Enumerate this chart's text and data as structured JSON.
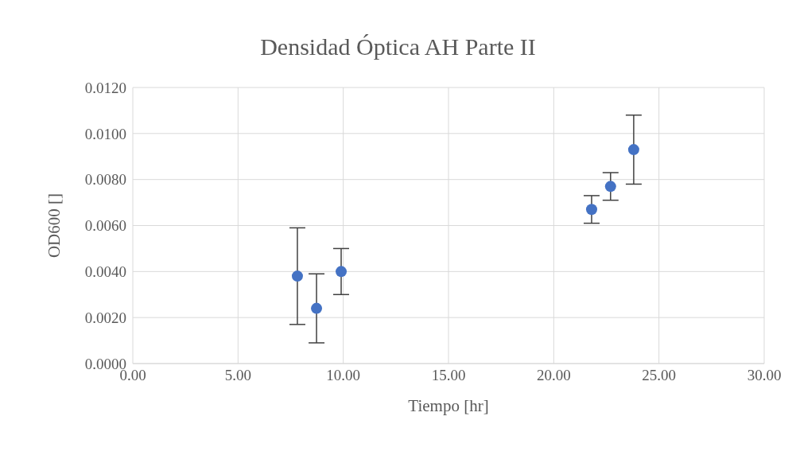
{
  "chart_data": {
    "type": "scatter",
    "title": "Densidad Óptica AH Parte II",
    "xlabel": "Tiempo [hr]",
    "ylabel": "OD600 []",
    "x": [
      7.82,
      8.73,
      9.9,
      21.8,
      22.7,
      23.8
    ],
    "series": [
      {
        "color": "#4472c4",
        "values": [
          0.0038,
          0.0024,
          0.004,
          0.0067,
          0.0077,
          0.0093
        ],
        "errors": [
          0.0021,
          0.0015,
          0.001,
          0.0006,
          0.0006,
          0.0015
        ]
      }
    ],
    "xlim": [
      0,
      30
    ],
    "xticks": [
      {
        "value": 0,
        "label": "0.00"
      },
      {
        "value": 5,
        "label": "5.00"
      },
      {
        "value": 10,
        "label": "10.00"
      },
      {
        "value": 15,
        "label": "15.00"
      },
      {
        "value": 20,
        "label": "20.00"
      },
      {
        "value": 25,
        "label": "25.00"
      },
      {
        "value": 30,
        "label": "30.00"
      }
    ],
    "ylim": [
      0,
      0.012
    ],
    "yticks": [
      {
        "value": 0,
        "label": "0.0000"
      },
      {
        "value": 0.002,
        "label": "0.0020"
      },
      {
        "value": 0.004,
        "label": "0.0040"
      },
      {
        "value": 0.006,
        "label": "0.0060"
      },
      {
        "value": 0.008,
        "label": "0.0080"
      },
      {
        "value": 0.01,
        "label": "0.0100"
      },
      {
        "value": 0.012,
        "label": "0.0120"
      }
    ],
    "grid": true,
    "marker": "circle",
    "legend": false
  }
}
